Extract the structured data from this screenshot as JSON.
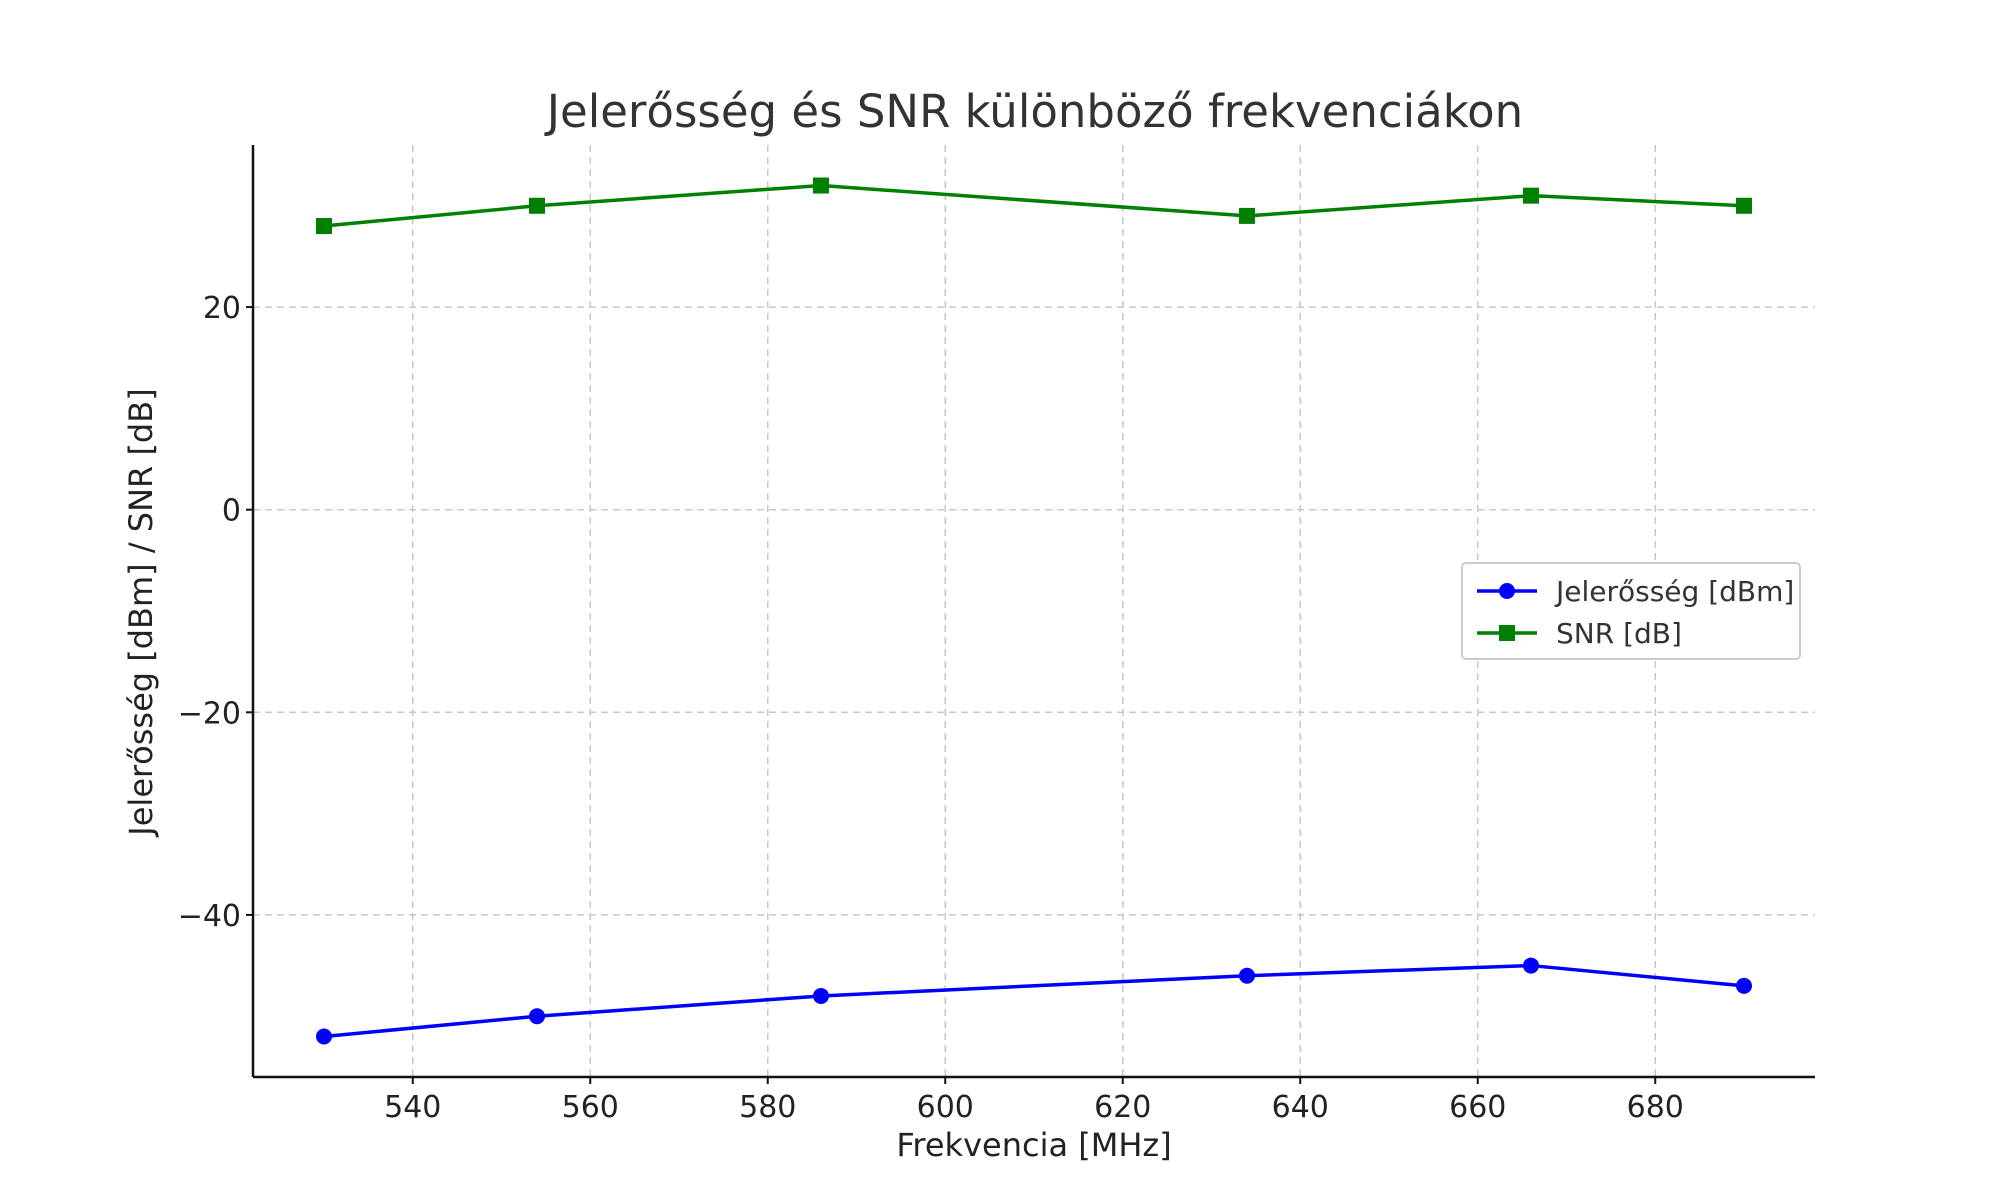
{
  "chart_data": {
    "type": "line",
    "title": "Jelerősség és SNR különböző frekvenciákon",
    "xlabel": "Frekvencia [MHz]",
    "ylabel": "Jelerősség [dBm] / SNR [dB]",
    "x": [
      530,
      554,
      586,
      634,
      666,
      690
    ],
    "xlim": [
      522,
      698
    ],
    "ylim": [
      -56,
      36
    ],
    "xticks": [
      540,
      560,
      580,
      600,
      620,
      640,
      660,
      680
    ],
    "yticks": [
      -40,
      -20,
      0,
      20
    ],
    "xtick_labels": [
      "540",
      "560",
      "580",
      "600",
      "620",
      "640",
      "660",
      "680"
    ],
    "ytick_labels": [
      "−40",
      "−20",
      "0",
      "20"
    ],
    "grid": true,
    "legend_position": "center-right",
    "series": [
      {
        "name": "Jelerősség [dBm]",
        "values": [
          -52,
          -50,
          -48,
          -46,
          -45,
          -47
        ],
        "color": "#0000ff",
        "marker": "circle"
      },
      {
        "name": "SNR [dB]",
        "values": [
          28,
          30,
          32,
          29,
          31,
          30
        ],
        "color": "#008000",
        "marker": "square"
      }
    ]
  }
}
